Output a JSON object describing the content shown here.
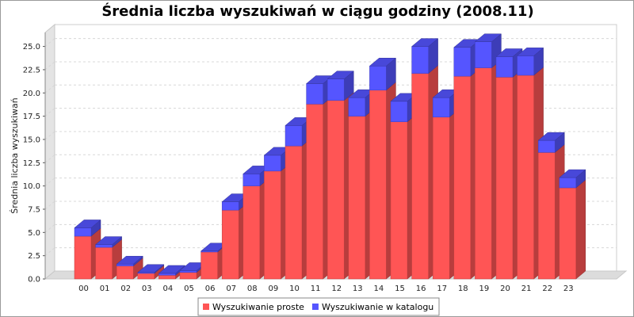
{
  "chart_data": {
    "type": "bar",
    "stacked": true,
    "three_d": true,
    "title": "Średnia liczba wyszukiwań w ciągu godziny (2008.11)",
    "xlabel": "",
    "ylabel": "Średnia liczba wyszukiwań",
    "ylim": [
      0,
      26.5
    ],
    "yticks": [
      0.0,
      2.5,
      5.0,
      7.5,
      10.0,
      12.5,
      15.0,
      17.5,
      20.0,
      22.5,
      25.0
    ],
    "ytick_labels": [
      "0.0",
      "2.5",
      "5.0",
      "7.5",
      "10.0",
      "12.5",
      "15.0",
      "17.5",
      "20.0",
      "22.5",
      "25.0"
    ],
    "grid": true,
    "legend_position": "bottom",
    "categories": [
      "00",
      "01",
      "02",
      "03",
      "04",
      "05",
      "06",
      "07",
      "08",
      "09",
      "10",
      "11",
      "12",
      "13",
      "14",
      "15",
      "16",
      "17",
      "18",
      "19",
      "20",
      "21",
      "22",
      "23"
    ],
    "series": [
      {
        "name": "Wyszukiwanie proste",
        "color": "#ff5555",
        "values": [
          4.6,
          3.4,
          1.4,
          0.6,
          0.4,
          0.7,
          2.9,
          7.4,
          10.0,
          11.6,
          14.3,
          18.8,
          19.2,
          17.5,
          20.3,
          16.9,
          22.1,
          17.4,
          21.8,
          22.7,
          21.7,
          21.9,
          13.6,
          9.8
        ]
      },
      {
        "name": "Wyszukiwanie w katalogu",
        "color": "#5555ff",
        "values": [
          0.9,
          0.3,
          0.2,
          0.1,
          0.2,
          0.2,
          0.1,
          0.9,
          1.3,
          1.7,
          2.2,
          2.2,
          2.3,
          2.0,
          2.6,
          2.2,
          2.9,
          2.1,
          3.1,
          2.8,
          2.2,
          2.1,
          1.3,
          1.1
        ]
      }
    ]
  }
}
